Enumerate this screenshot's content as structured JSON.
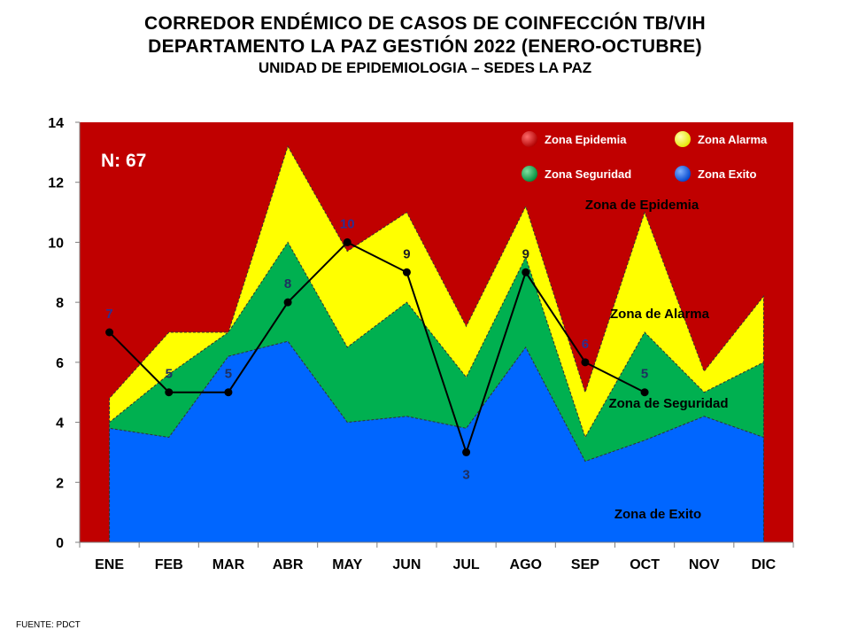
{
  "header": {
    "title_line1": "CORREDOR ENDÉMICO DE CASOS DE COINFECCIÓN TB/VIH",
    "title_line2": "DEPARTAMENTO  LA PAZ GESTIÓN 2022 (ENERO-OCTUBRE)",
    "title_line3": "UNIDAD DE EPIDEMIOLOGIA – SEDES LA PAZ"
  },
  "source": "FUENTE:   PDCT",
  "chart_data": {
    "type": "area",
    "categories": [
      "ENE",
      "FEB",
      "MAR",
      "ABR",
      "MAY",
      "JUN",
      "JUL",
      "AGO",
      "SEP",
      "OCT",
      "NOV",
      "DIC"
    ],
    "ylim": [
      0,
      14
    ],
    "yticks": [
      0,
      2,
      4,
      6,
      8,
      10,
      12,
      14
    ],
    "grid": false,
    "n_label": "N: 67",
    "series": [
      {
        "name": "Zona Exito",
        "color": "#0066FF",
        "values": [
          3.8,
          3.5,
          6.2,
          6.7,
          4.0,
          4.2,
          3.8,
          6.5,
          2.7,
          3.4,
          4.2,
          3.5
        ]
      },
      {
        "name": "Zona Seguridad",
        "color": "#00B050",
        "values": [
          4.0,
          5.6,
          7.0,
          10.0,
          6.5,
          8.0,
          5.5,
          9.5,
          3.5,
          7.0,
          5.0,
          6.0
        ]
      },
      {
        "name": "Zona Alarma",
        "color": "#FFFF00",
        "values": [
          4.8,
          7.0,
          7.0,
          13.2,
          9.7,
          11.0,
          7.2,
          11.2,
          5.0,
          11.0,
          5.7,
          8.2
        ]
      },
      {
        "name": "Zona Epidemia",
        "color": "#C00000",
        "values": [
          14,
          14,
          14,
          14,
          14,
          14,
          14,
          14,
          14,
          14,
          14,
          14
        ]
      }
    ],
    "cases_2022": {
      "values": [
        7,
        5,
        5,
        8,
        10,
        9,
        3,
        9,
        6,
        5
      ],
      "labels": [
        "7",
        "5",
        "5",
        "8",
        "10",
        "9",
        "3",
        "9",
        "6",
        "5"
      ]
    },
    "legend": {
      "placement": "top-right",
      "items": [
        {
          "label": "Zona Epidemia",
          "color": "#E00000"
        },
        {
          "label": "Zona Alarma",
          "color": "#FFFF00"
        },
        {
          "label": "Zona Seguridad",
          "color": "#00B050"
        },
        {
          "label": "Zona Exito",
          "color": "#0066FF"
        }
      ]
    },
    "annotations": [
      {
        "text": "Zona de Epidemia",
        "x": "OCT",
        "y": 11.5
      },
      {
        "text": "Zona de Alarma",
        "x": "OCT",
        "y": 7.6
      },
      {
        "text": "Zona de Seguridad",
        "x": "OCT",
        "y": 4.5
      },
      {
        "text": "Zona de Exito",
        "x": "OCT",
        "y": 0.9
      }
    ]
  }
}
